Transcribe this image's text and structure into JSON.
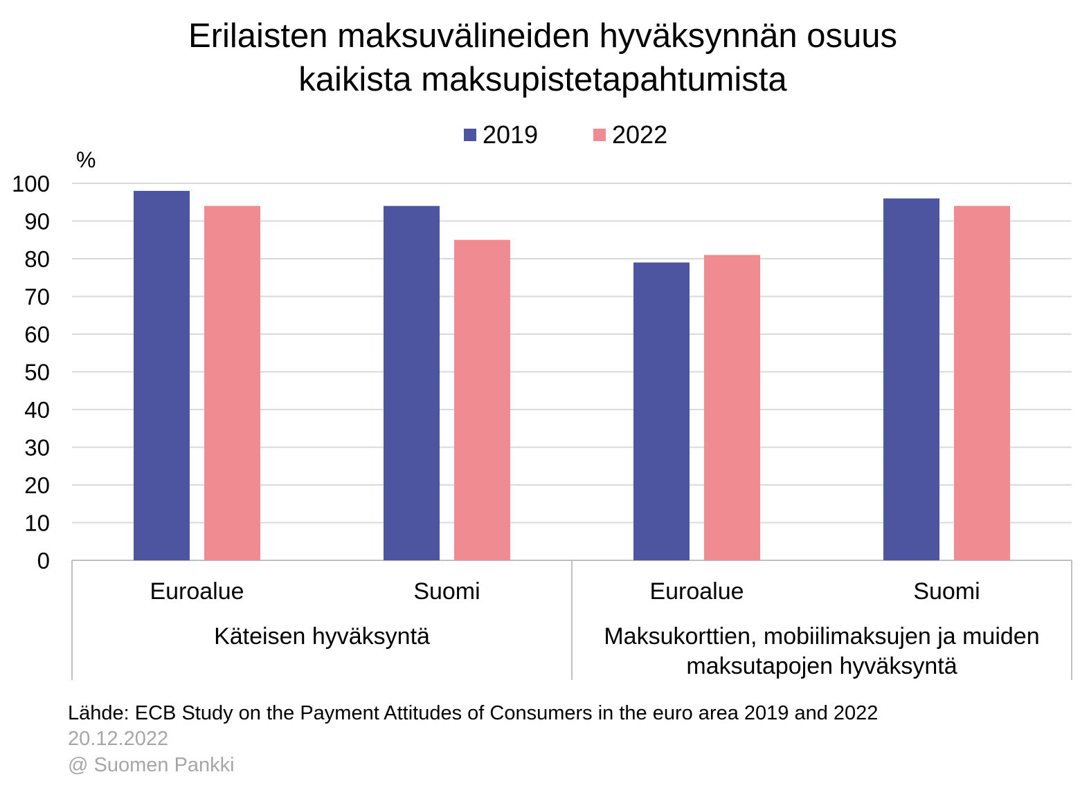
{
  "title_lines": [
    "Erilaisten maksuvälineiden hyväksynnän osuus",
    "kaikista maksupistetapahtumista"
  ],
  "footer": {
    "source": "Lähde: ECB Study on the Payment Attitudes of Consumers in the euro area 2019 and 2022",
    "date": "20.12.2022",
    "copyright": "@ Suomen Pankki"
  },
  "colors": {
    "series_2019": "#4e55a0",
    "series_2022": "#f08b91",
    "grid": "#d9d9d9",
    "axis": "#bfbfbf"
  },
  "chart_data": {
    "type": "bar",
    "unit_label": "%",
    "ylim": [
      0,
      100
    ],
    "yticks": [
      0,
      10,
      20,
      30,
      40,
      50,
      60,
      70,
      80,
      90,
      100
    ],
    "grid": true,
    "legend_position": "top-center",
    "categories": [
      "Euroalue",
      "Suomi",
      "Euroalue",
      "Suomi"
    ],
    "groups": [
      {
        "label_lines": [
          "Käteisen hyväksyntä"
        ],
        "span": [
          0,
          1
        ]
      },
      {
        "label_lines": [
          "Maksukorttien, mobiilimaksujen ja muiden",
          "maksutapojen hyväksyntä"
        ],
        "span": [
          2,
          3
        ]
      }
    ],
    "series": [
      {
        "name": "2019",
        "values": [
          98,
          94,
          79,
          96
        ]
      },
      {
        "name": "2022",
        "values": [
          94,
          85,
          81,
          94
        ]
      }
    ]
  }
}
